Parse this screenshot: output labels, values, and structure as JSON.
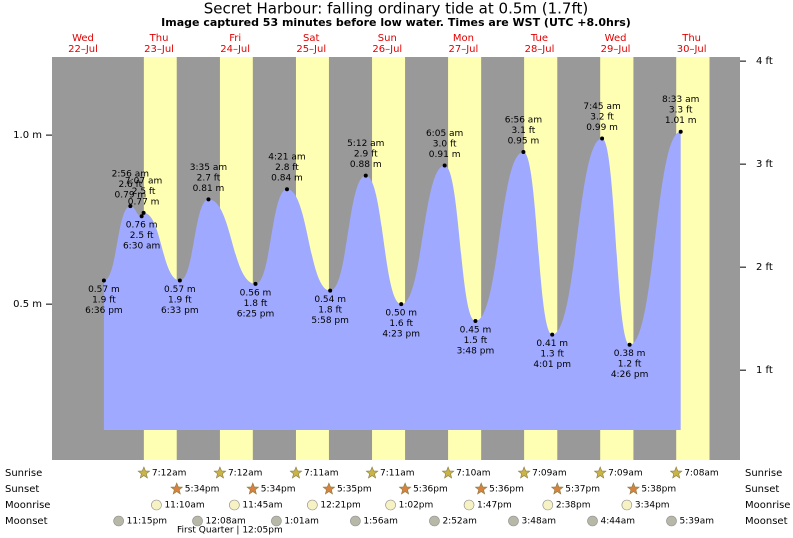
{
  "chart_data": {
    "type": "area",
    "title": "Secret Harbour: falling  ordinary tide at 0.5m (1.7ft)",
    "subtitle": "Image captured 53 minutes before low water. Times are WST (UTC +8.0hrs)",
    "color": "#9fa9ff",
    "night_color": "#999999",
    "day_color": "#ffffb4",
    "day_label_color": "#e00000",
    "ylim": [
      0.039,
      1.231
    ],
    "yticks": [
      {
        "value": 0.5,
        "label": "0.5 m"
      },
      {
        "value": 1.0,
        "label": "1.0 m"
      }
    ],
    "y2lim": [
      0.128,
      4.04
    ],
    "y2ticks": [
      {
        "value": 1,
        "label": "1 ft"
      },
      {
        "value": 2,
        "label": "2 ft"
      },
      {
        "value": 3,
        "label": "3 ft"
      },
      {
        "value": 4,
        "label": "4 ft"
      }
    ],
    "days": [
      {
        "name": "Wed",
        "date": "22–Jul",
        "events": [
          {
            "time": "6:36 pm",
            "m": 0.57,
            "m_label": "0.57 m",
            "ft_label": "1.9 ft"
          }
        ]
      },
      {
        "name": "Thu",
        "date": "23–Jul",
        "events": [
          {
            "time": "2:56 am",
            "m": 0.79,
            "m_label": "0.79 m",
            "ft_label": "2.6 ft"
          },
          {
            "time": "6:30 am",
            "m": 0.76,
            "m_label": "0.76 m",
            "ft_label": "2.5 ft"
          },
          {
            "time": "7:07 am",
            "m": 0.77,
            "m_label": "0.77 m",
            "ft_label": "2.5 ft"
          },
          {
            "time": "6:33 pm",
            "m": 0.57,
            "m_label": "0.57 m",
            "ft_label": "1.9 ft"
          }
        ]
      },
      {
        "name": "Fri",
        "date": "24–Jul",
        "events": [
          {
            "time": "3:35 am",
            "m": 0.81,
            "m_label": "0.81 m",
            "ft_label": "2.7 ft"
          },
          {
            "time": "6:25 pm",
            "m": 0.56,
            "m_label": "0.56 m",
            "ft_label": "1.8 ft"
          }
        ]
      },
      {
        "name": "Sat",
        "date": "25–Jul",
        "events": [
          {
            "time": "4:21 am",
            "m": 0.84,
            "m_label": "0.84 m",
            "ft_label": "2.8 ft"
          },
          {
            "time": "5:58 pm",
            "m": 0.54,
            "m_label": "0.54 m",
            "ft_label": "1.8 ft"
          }
        ]
      },
      {
        "name": "Sun",
        "date": "26–Jul",
        "events": [
          {
            "time": "5:12 am",
            "m": 0.88,
            "m_label": "0.88 m",
            "ft_label": "2.9 ft"
          },
          {
            "time": "4:23 pm",
            "m": 0.5,
            "m_label": "0.50 m",
            "ft_label": "1.6 ft"
          }
        ]
      },
      {
        "name": "Mon",
        "date": "27–Jul",
        "events": [
          {
            "time": "6:05 am",
            "m": 0.91,
            "m_label": "0.91 m",
            "ft_label": "3.0 ft"
          },
          {
            "time": "3:48 pm",
            "m": 0.45,
            "m_label": "0.45 m",
            "ft_label": "1.5 ft"
          }
        ]
      },
      {
        "name": "Tue",
        "date": "28–Jul",
        "events": [
          {
            "time": "6:56 am",
            "m": 0.95,
            "m_label": "0.95 m",
            "ft_label": "3.1 ft"
          },
          {
            "time": "4:01 pm",
            "m": 0.41,
            "m_label": "0.41 m",
            "ft_label": "1.3 ft"
          }
        ]
      },
      {
        "name": "Wed",
        "date": "29–Jul",
        "events": [
          {
            "time": "7:45 am",
            "m": 0.99,
            "m_label": "0.99 m",
            "ft_label": "3.2 ft"
          },
          {
            "time": "4:26 pm",
            "m": 0.38,
            "m_label": "0.38 m",
            "ft_label": "1.2 ft"
          }
        ]
      },
      {
        "name": "Thu",
        "date": "30–Jul",
        "events": [
          {
            "time": "8:33 am",
            "m": 1.01,
            "m_label": "1.01 m",
            "ft_label": "3.3 ft"
          }
        ]
      }
    ]
  },
  "almanac": {
    "rows": [
      {
        "label": "Sunrise",
        "color": "#c8b448",
        "shape": "star",
        "times": [
          null,
          "7:12am",
          "7:12am",
          "7:11am",
          "7:11am",
          "7:10am",
          "7:09am",
          "7:09am",
          "7:08am"
        ]
      },
      {
        "label": "Sunset",
        "color": "#d7833f",
        "shape": "star",
        "times": [
          null,
          "5:34pm",
          "5:34pm",
          "5:35pm",
          "5:36pm",
          "5:36pm",
          "5:37pm",
          "5:38pm",
          null
        ]
      },
      {
        "label": "Moonrise",
        "color": "#f6f2c4",
        "shape": "circle",
        "times": [
          null,
          "11:10am",
          "11:45am",
          "12:21pm",
          "1:02pm",
          "1:47pm",
          "2:38pm",
          "3:34pm",
          null
        ]
      },
      {
        "label": "Moonset",
        "color": "#b8b8a8",
        "shape": "circle",
        "times": [
          "11:15pm",
          null,
          "12:08am",
          "1:01am",
          "1:56am",
          "2:52am",
          "3:48am",
          "4:44am",
          "5:39am"
        ]
      }
    ],
    "moon_phase": "First Quarter | 12:05pm"
  }
}
